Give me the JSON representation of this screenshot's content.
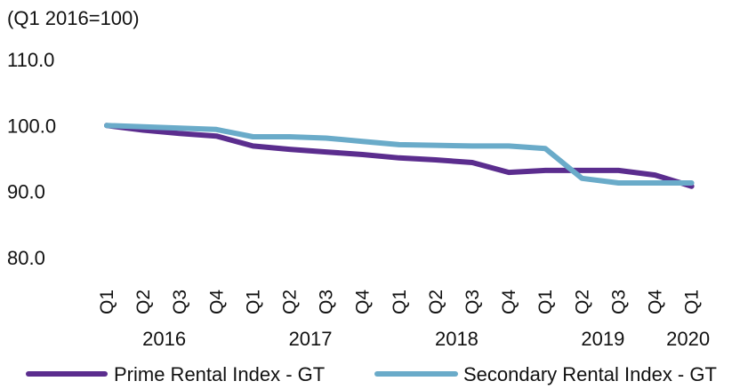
{
  "chart_data": {
    "type": "line",
    "unit_label": "(Q1 2016=100)",
    "ylim": [
      80,
      110
    ],
    "y_ticks": [
      "110.0",
      "100.0",
      "90.0",
      "80.0"
    ],
    "grid": false,
    "legend_position": "bottom",
    "categories": [
      "Q1",
      "Q2",
      "Q3",
      "Q4",
      "Q1",
      "Q2",
      "Q3",
      "Q4",
      "Q1",
      "Q2",
      "Q3",
      "Q4",
      "Q1",
      "Q2",
      "Q3",
      "Q4",
      "Q1"
    ],
    "years": [
      {
        "label": "2016",
        "first_index": 0,
        "last_index": 3
      },
      {
        "label": "2017",
        "first_index": 4,
        "last_index": 7
      },
      {
        "label": "2018",
        "first_index": 8,
        "last_index": 11
      },
      {
        "label": "2019",
        "first_index": 12,
        "last_index": 15
      },
      {
        "label": "2020",
        "first_index": 16,
        "last_index": 16
      }
    ],
    "series": [
      {
        "name": "Prime Rental Index - GT",
        "color": "#5b2d8e",
        "values": [
          100.0,
          99.3,
          98.8,
          98.4,
          96.9,
          96.4,
          96.0,
          95.6,
          95.1,
          94.8,
          94.4,
          92.9,
          93.2,
          93.2,
          93.2,
          92.5,
          90.8
        ]
      },
      {
        "name": "Secondary Rental Index - GT",
        "color": "#6aabc9",
        "values": [
          100.0,
          99.8,
          99.6,
          99.4,
          98.3,
          98.3,
          98.1,
          97.6,
          97.1,
          97.0,
          96.9,
          96.9,
          96.5,
          92.0,
          91.3,
          91.3,
          91.3
        ]
      }
    ]
  }
}
